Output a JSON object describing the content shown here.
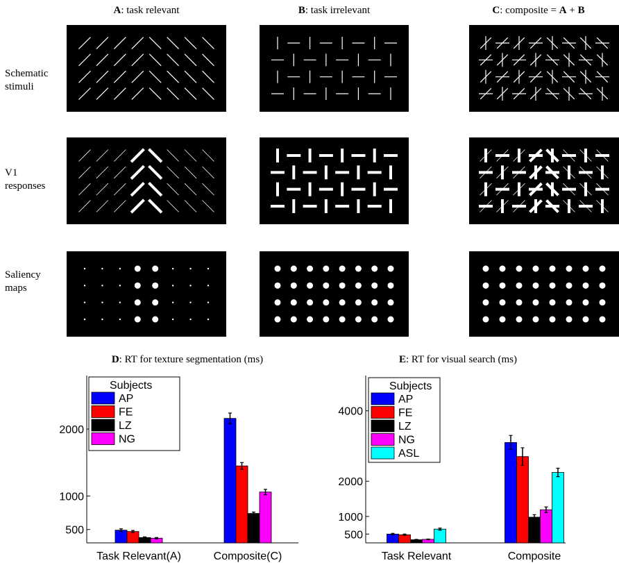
{
  "columns": [
    {
      "letter": "A",
      "text": ": task relevant"
    },
    {
      "letter": "B",
      "text": ": task irrelevant"
    },
    {
      "letter": "C",
      "text": ": composite = ",
      "extra_a": "A",
      "plus": " + ",
      "extra_b": "B"
    }
  ],
  "rows": [
    {
      "line1": "Schematic",
      "line2": "stimuli"
    },
    {
      "line1": "V1",
      "line2": "responses"
    },
    {
      "line1": "Saliency",
      "line2": "maps"
    }
  ],
  "colors": {
    "AP": "#0000ff",
    "FE": "#ff0000",
    "LZ": "#000000",
    "NG": "#ff00ff",
    "ASL": "#00ffff"
  },
  "chart_data": [
    {
      "id": "D",
      "type": "bar",
      "title_letter": "D",
      "title": ": RT for texture segmentation (ms)",
      "legend_title": "Subjects",
      "categories": [
        "Task Relevant(A)",
        "Composite(C)"
      ],
      "yticks": [
        500,
        1000,
        2000
      ],
      "ylim": [
        300,
        2800
      ],
      "series": [
        {
          "name": "AP",
          "values": [
            490,
            2160
          ],
          "errors": [
            20,
            80
          ]
        },
        {
          "name": "FE",
          "values": [
            470,
            1450
          ],
          "errors": [
            15,
            50
          ]
        },
        {
          "name": "LZ",
          "values": [
            380,
            740
          ],
          "errors": [
            10,
            20
          ]
        },
        {
          "name": "NG",
          "values": [
            370,
            1060
          ],
          "errors": [
            10,
            40
          ]
        }
      ]
    },
    {
      "id": "E",
      "type": "bar",
      "title_letter": "E",
      "title": ": RT for visual search (ms)",
      "legend_title": "Subjects",
      "categories": [
        "Task Relevant",
        "Composite"
      ],
      "yticks": [
        500,
        1000,
        2000,
        4000
      ],
      "ylim": [
        250,
        5000
      ],
      "series": [
        {
          "name": "AP",
          "values": [
            500,
            3100
          ],
          "errors": [
            20,
            200
          ]
        },
        {
          "name": "FE",
          "values": [
            480,
            2700
          ],
          "errors": [
            20,
            250
          ]
        },
        {
          "name": "LZ",
          "values": [
            340,
            980
          ],
          "errors": [
            10,
            70
          ]
        },
        {
          "name": "NG",
          "values": [
            350,
            1190
          ],
          "errors": [
            10,
            80
          ]
        },
        {
          "name": "ASL",
          "values": [
            640,
            2250
          ],
          "errors": [
            30,
            120
          ]
        }
      ]
    }
  ]
}
